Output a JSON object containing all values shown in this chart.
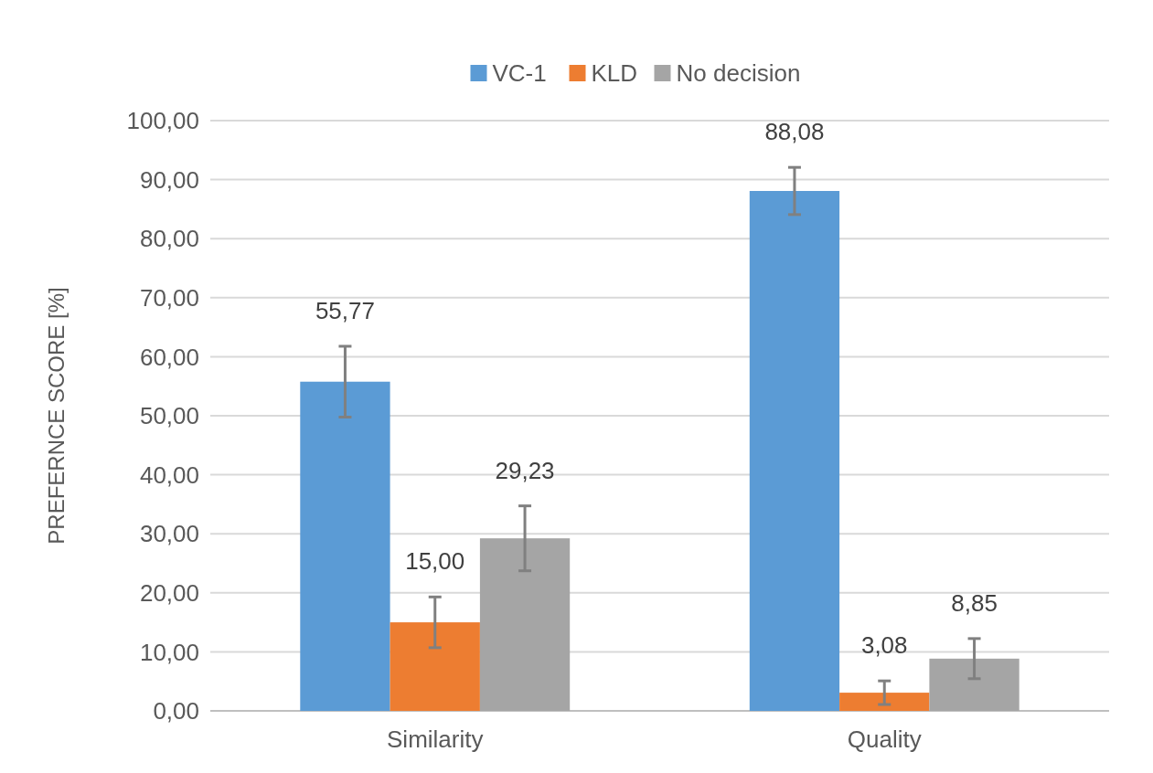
{
  "chart_data": {
    "type": "bar",
    "ylabel": "PREFERNCE SCORE [%]",
    "categories": [
      "Similarity",
      "Quality"
    ],
    "series": [
      {
        "name": "VC-1",
        "color": "#5b9bd5",
        "values": [
          55.77,
          88.08
        ],
        "errors": [
          6,
          4
        ],
        "value_labels": [
          "55,77",
          "88,08"
        ]
      },
      {
        "name": "KLD",
        "color": "#ed7d31",
        "values": [
          15.0,
          3.08
        ],
        "errors": [
          4.3,
          2
        ],
        "value_labels": [
          "15,00",
          "3,08"
        ]
      },
      {
        "name": "No decision",
        "color": "#a5a5a5",
        "values": [
          29.23,
          8.85
        ],
        "errors": [
          5.5,
          3.4
        ],
        "value_labels": [
          "29,23",
          "8,85"
        ]
      }
    ],
    "ylim": [
      0,
      100
    ],
    "yticks": [
      {
        "value": 0,
        "label": "0,00"
      },
      {
        "value": 10,
        "label": "10,00"
      },
      {
        "value": 20,
        "label": "20,00"
      },
      {
        "value": 30,
        "label": "30,00"
      },
      {
        "value": 40,
        "label": "40,00"
      },
      {
        "value": 50,
        "label": "50,00"
      },
      {
        "value": 60,
        "label": "60,00"
      },
      {
        "value": 70,
        "label": "70,00"
      },
      {
        "value": 80,
        "label": "80,00"
      },
      {
        "value": 90,
        "label": "90,00"
      },
      {
        "value": 100,
        "label": "100,00"
      }
    ],
    "grid": "y",
    "legend": "top"
  }
}
